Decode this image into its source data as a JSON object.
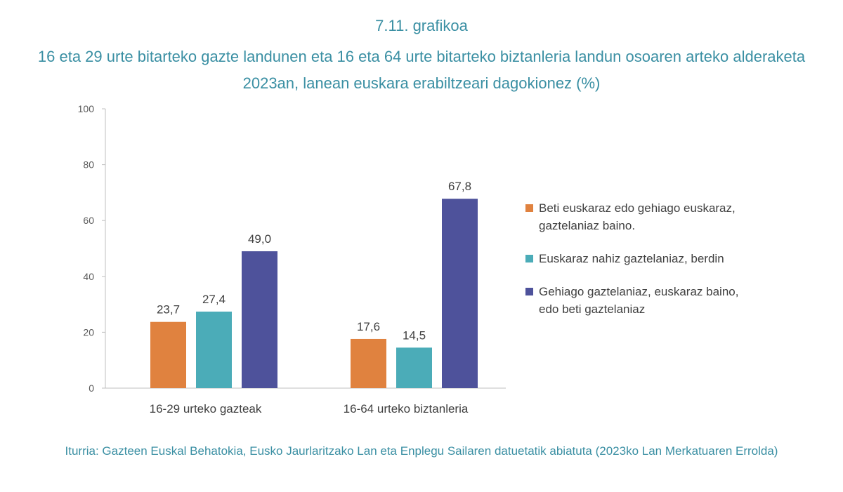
{
  "header": {
    "number": "7.11. grafikoa",
    "title": "16 eta 29 urte bitarteko gazte landunen eta 16 eta 64 urte bitarteko biztanleria landun osoaren arteko alderaketa 2023an, lanean euskara erabiltzeari dagokionez (%)"
  },
  "chart_data": {
    "type": "bar",
    "title": "16 eta 29 urte bitarteko gazte landunen eta 16 eta 64 urte bitarteko biztanleria landun osoaren arteko alderaketa 2023an, lanean euskara erabiltzeari dagokionez (%)",
    "categories": [
      "16-29 urteko gazteak",
      "16-64 urteko biztanleria"
    ],
    "series": [
      {
        "name": "Beti euskaraz edo gehiago euskaraz, gaztelaniaz baino.",
        "color": "#e0823f",
        "values": [
          23.7,
          17.6
        ],
        "labels": [
          "23,7",
          "17,6"
        ]
      },
      {
        "name": "Euskaraz nahiz gaztelaniaz, berdin",
        "color": "#4bacb8",
        "values": [
          27.4,
          14.5
        ],
        "labels": [
          "27,4",
          "14,5"
        ]
      },
      {
        "name": "Gehiago gaztelaniaz, euskaraz baino, edo beti gaztelaniaz",
        "color": "#4e529b",
        "values": [
          49.0,
          67.8
        ],
        "labels": [
          "49,0",
          "67,8"
        ]
      }
    ],
    "ylim": [
      0,
      100
    ],
    "yticks": [
      0,
      20,
      40,
      60,
      80,
      100
    ],
    "grid": false,
    "legend": "right"
  },
  "source": "Iturria: Gazteen Euskal Behatokia, Eusko Jaurlaritzako Lan eta Enplegu Sailaren datuetatik abiatuta (2023ko Lan Merkatuaren Errolda)"
}
